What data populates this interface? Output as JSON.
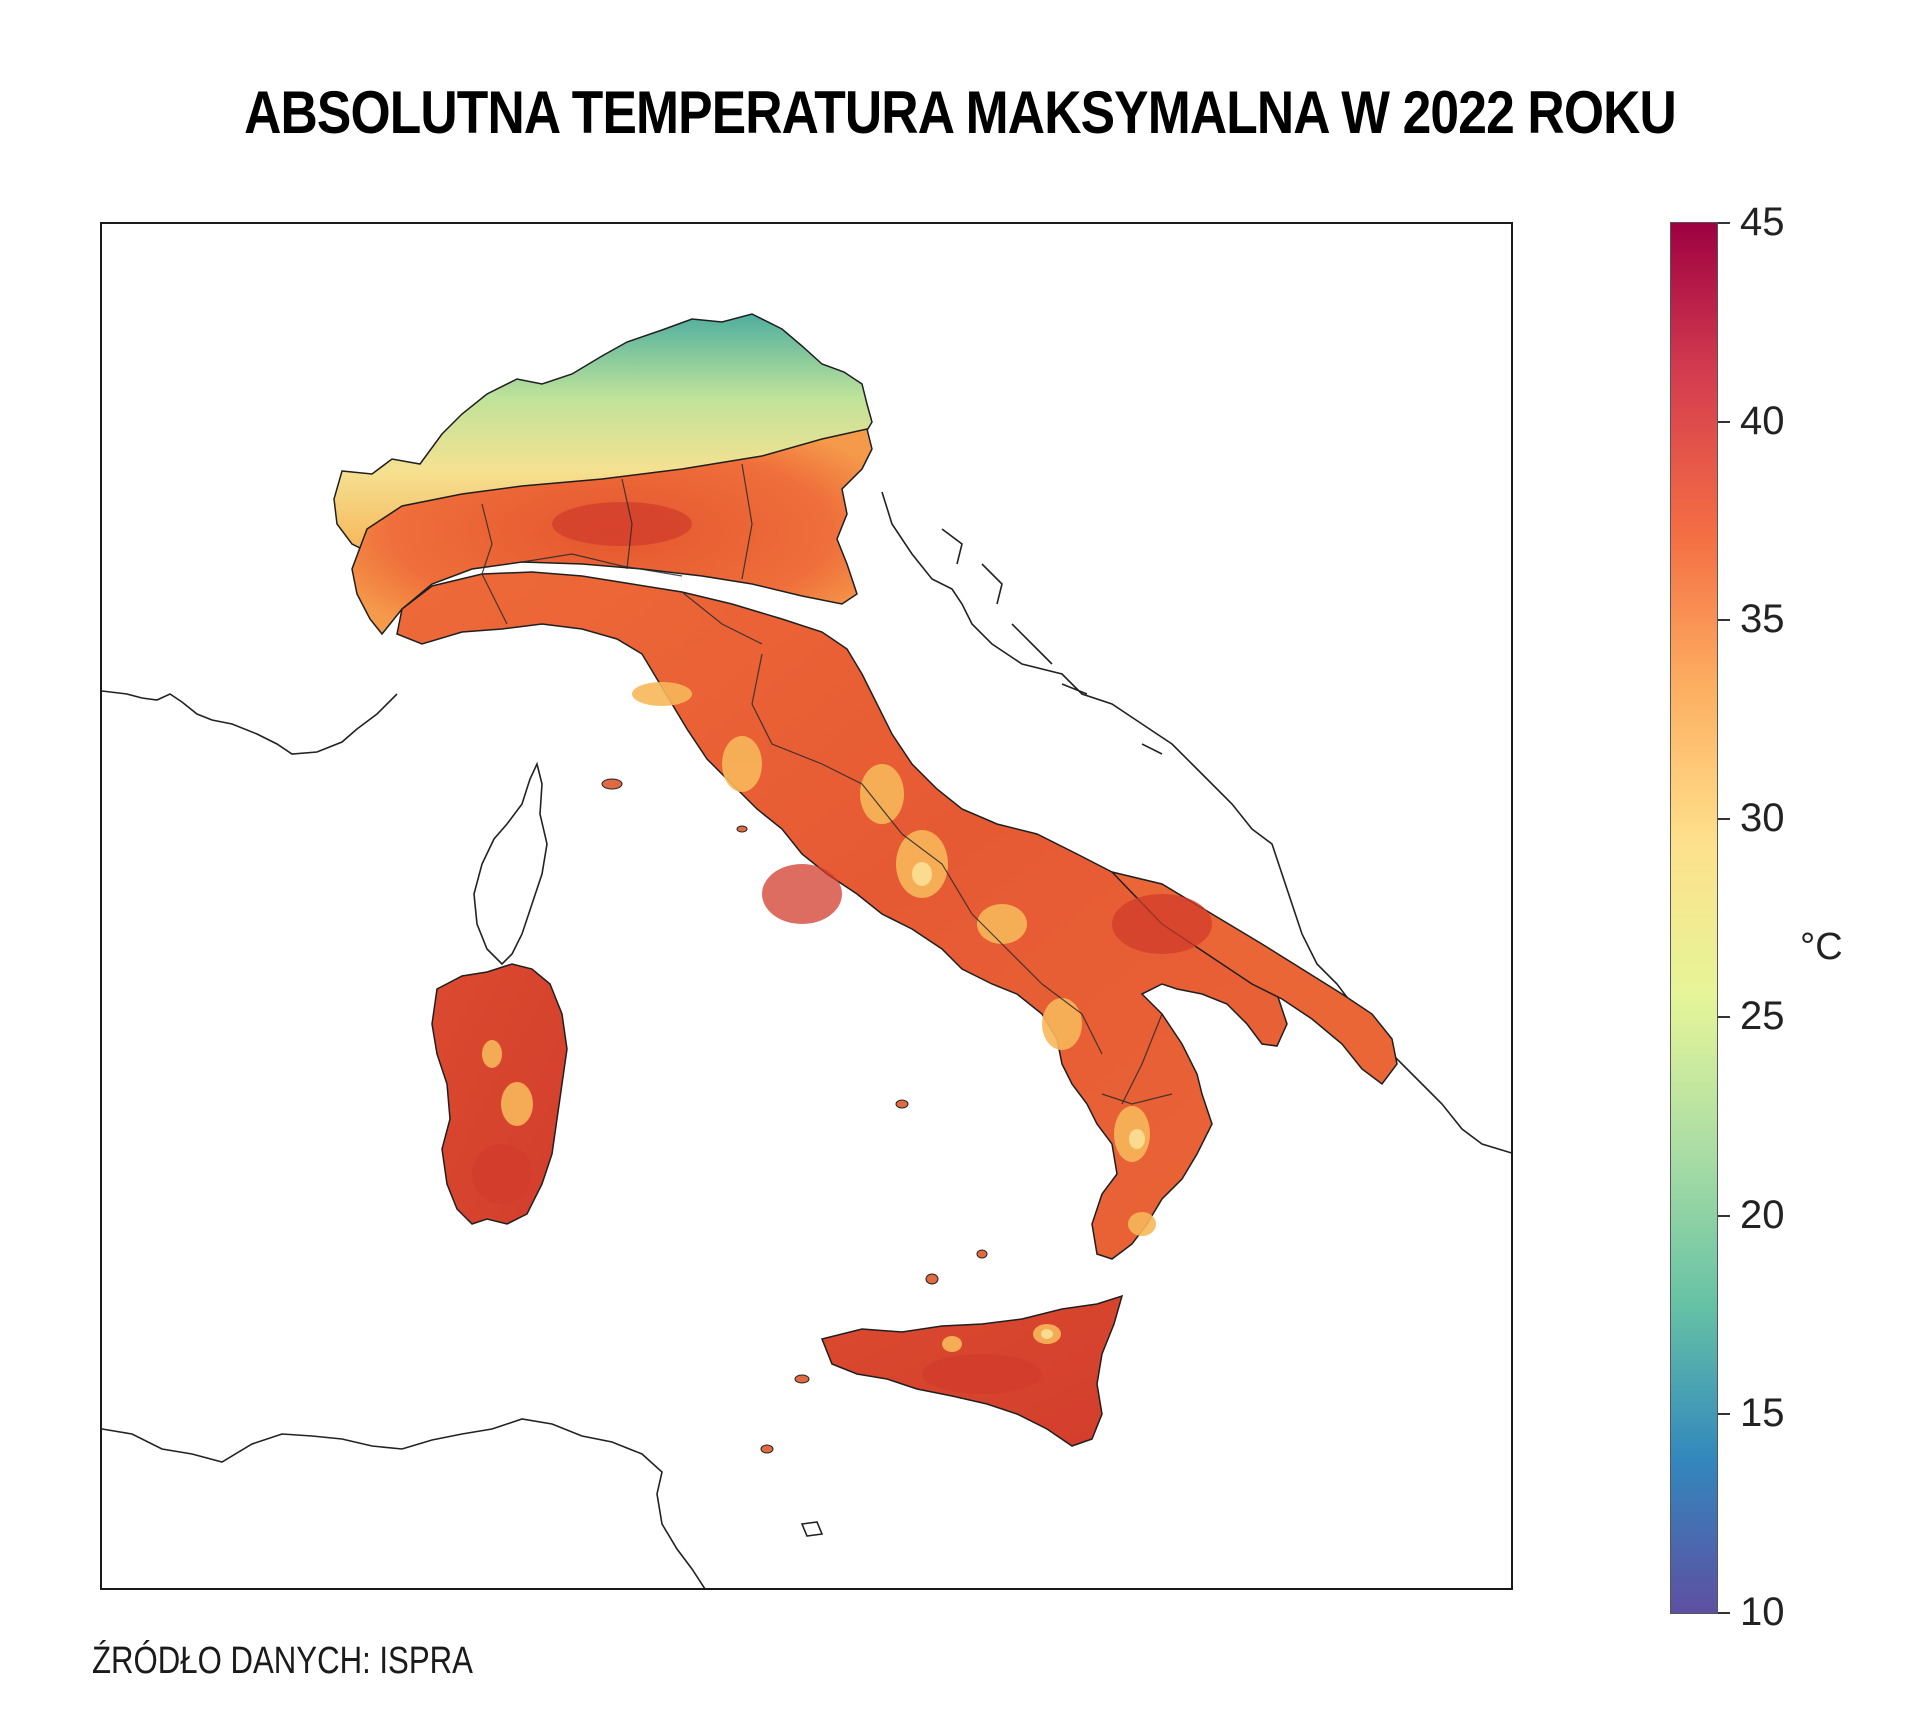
{
  "title": "ABSOLUTNA TEMPERATURA MAKSYMALNA W 2022 ROKU",
  "source": "ŹRÓDŁO DANYCH: ISPRA",
  "legend": {
    "unit": "°C",
    "min": 10,
    "max": 45,
    "ticks": [
      "45",
      "40",
      "35",
      "30",
      "25",
      "20",
      "15",
      "10"
    ],
    "colormap": [
      "#5e4fa2",
      "#3288bd",
      "#66c2a5",
      "#abdda4",
      "#e6f598",
      "#fee08b",
      "#fdae61",
      "#f46d43",
      "#d53e4f",
      "#9e0142"
    ]
  },
  "map": {
    "colors": {
      "hot": "#d9462f",
      "warm": "#ef6a3a",
      "mild": "#f7a04c",
      "cool": "#c9e69a",
      "cold": "#5ab89e",
      "coast": "#222222"
    }
  }
}
